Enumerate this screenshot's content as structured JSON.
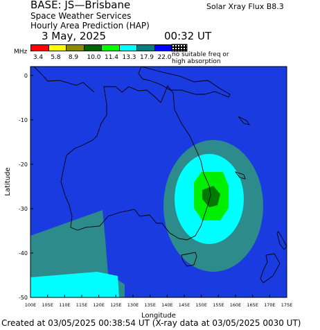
{
  "header": {
    "base": "BASE: JS—Brisbane",
    "service": "Space Weather Services",
    "product": "Hourly Area Prediction (HAP)",
    "date": "3 May, 2025",
    "time": "00:32 UT",
    "flux": "Solar Xray Flux B8.3"
  },
  "legend": {
    "unit": "MHz",
    "no_suitable_1": "no suitable freq or",
    "no_suitable_2": "high absorption",
    "bins": [
      {
        "color": "#ff0000",
        "label": "3.4"
      },
      {
        "color": "#ffff00",
        "label": "5.8"
      },
      {
        "color": "#8b8b00",
        "label": "8.9"
      },
      {
        "color": "#006400",
        "label": "10.0"
      },
      {
        "color": "#00ff00",
        "label": "11.4"
      },
      {
        "color": "#00ffff",
        "label": "13.3"
      },
      {
        "color": "#008080",
        "label": "17.9"
      },
      {
        "color": "#0000ff",
        "label": "22.0"
      }
    ]
  },
  "map": {
    "x_label": "Longitude",
    "y_label": "Latitude",
    "lon_ticks": [
      "100E",
      "105E",
      "110E",
      "115E",
      "120E",
      "125E",
      "130E",
      "135E",
      "140E",
      "145E",
      "150E",
      "155E",
      "160E",
      "165E",
      "170E",
      "175E"
    ],
    "lat_ticks": [
      "0",
      "-10",
      "-20",
      "-30",
      "-40",
      "-50"
    ],
    "lon_range": [
      100,
      175
    ],
    "lat_range": [
      -50,
      2
    ],
    "ocean_color": "#1a3be0",
    "colors": {
      "teal": "#2e8b8b",
      "cyan": "#00ffff",
      "green": "#00ee00",
      "dark_green": "#007a00",
      "coast": "#000000"
    }
  },
  "footer": "Created at 03/05/2025 00:38:54 UT (X-ray data at 03/05/2025 0030 UT)"
}
